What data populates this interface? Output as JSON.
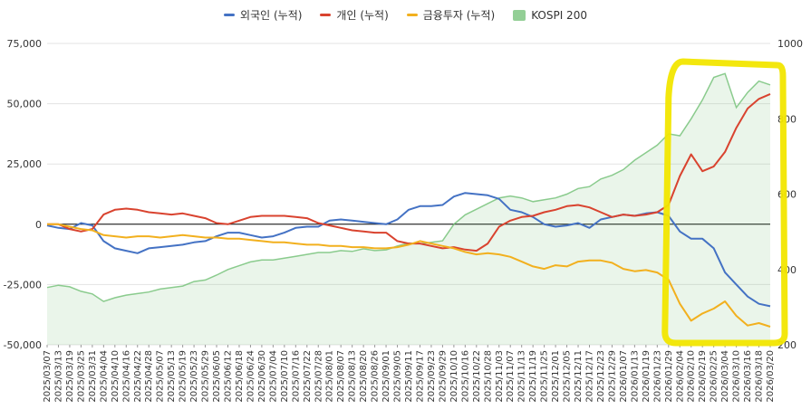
{
  "chart_data": {
    "type": "line",
    "legend_position": "top",
    "grid": true,
    "left_axis": {
      "min": -50000,
      "max": 75000,
      "ticks": [
        "-50,000",
        "-25,000",
        "0",
        "25,000",
        "50,000",
        "75,000"
      ]
    },
    "right_axis": {
      "min": 200,
      "max": 1000,
      "ticks": [
        "200",
        "400",
        "600",
        "800",
        "1000"
      ]
    },
    "x_labels": [
      "2025/03/07",
      "2025/03/13",
      "2025/03/19",
      "2025/03/25",
      "2025/03/31",
      "2025/04/04",
      "2025/04/10",
      "2025/04/16",
      "2025/04/22",
      "2025/04/28",
      "2025/05/07",
      "2025/05/13",
      "2025/05/19",
      "2025/05/23",
      "2025/05/29",
      "2025/06/05",
      "2025/06/12",
      "2025/06/18",
      "2025/06/24",
      "2025/06/30",
      "2025/07/04",
      "2025/07/10",
      "2025/07/16",
      "2025/07/22",
      "2025/07/28",
      "2025/08/01",
      "2025/08/07",
      "2025/08/13",
      "2025/08/20",
      "2025/08/26",
      "2025/09/01",
      "2025/09/05",
      "2025/09/11",
      "2025/09/17",
      "2025/09/23",
      "2025/09/29",
      "2025/10/10",
      "2025/10/16",
      "2025/10/22",
      "2025/10/28",
      "2025/11/03",
      "2025/11/07",
      "2025/11/13",
      "2025/11/19",
      "2025/11/25",
      "2025/12/01",
      "2025/12/05",
      "2025/12/11",
      "2025/12/17",
      "2025/12/23",
      "2025/12/29",
      "2026/01/07",
      "2026/01/13",
      "2026/01/19",
      "2026/01/23",
      "2026/01/29",
      "2026/02/04",
      "2026/02/10",
      "2026/02/19",
      "2026/02/25",
      "2026/03/04",
      "2026/03/10",
      "2026/03/16",
      "2026/03/18",
      "2026/03/20"
    ],
    "series": [
      {
        "name": "외국인 (누적)",
        "color": "#4472c4",
        "axis": "left",
        "values": [
          -500,
          -1500,
          -2000,
          500,
          -500,
          -7000,
          -10000,
          -11000,
          -12000,
          -10000,
          -9500,
          -9000,
          -8500,
          -7500,
          -7000,
          -5000,
          -3500,
          -3500,
          -4500,
          -5500,
          -5000,
          -3500,
          -1500,
          -1000,
          -1000,
          1500,
          2000,
          1500,
          1000,
          500,
          0,
          2000,
          6000,
          7500,
          7500,
          8000,
          11500,
          13000,
          12500,
          12000,
          10500,
          6000,
          5000,
          3000,
          0,
          -1000,
          -500,
          500,
          -1500,
          2000,
          3000,
          4000,
          3500,
          4500,
          5000,
          3500,
          -3000,
          -6000,
          -6000,
          -10000,
          -20000,
          -25000,
          -30000,
          -33000,
          -34000
        ]
      },
      {
        "name": "개인 (누적)",
        "color": "#d9432f",
        "axis": "left",
        "values": [
          0,
          0,
          -2000,
          -3000,
          -2000,
          4000,
          6000,
          6500,
          6000,
          5000,
          4500,
          4000,
          4500,
          3500,
          2500,
          500,
          0,
          1500,
          3000,
          3500,
          3500,
          3500,
          3000,
          2500,
          500,
          -500,
          -1500,
          -2500,
          -3000,
          -3500,
          -3500,
          -7000,
          -8000,
          -8000,
          -9000,
          -10000,
          -9500,
          -10500,
          -11000,
          -8000,
          -1000,
          1500,
          3000,
          3500,
          5000,
          6000,
          7500,
          8000,
          7000,
          5000,
          3000,
          4000,
          3500,
          4000,
          5000,
          8000,
          20000,
          29000,
          22000,
          24000,
          30000,
          40000,
          48000,
          52000,
          54000
        ]
      },
      {
        "name": "금융투자 (누적)",
        "color": "#f2b01e",
        "axis": "left",
        "values": [
          0,
          0,
          -1000,
          -2000,
          -2500,
          -4500,
          -5000,
          -5500,
          -5000,
          -5000,
          -5500,
          -5000,
          -4500,
          -5000,
          -5500,
          -5500,
          -6000,
          -6000,
          -6500,
          -7000,
          -7500,
          -7500,
          -8000,
          -8500,
          -8500,
          -9000,
          -9000,
          -9500,
          -9500,
          -10000,
          -10000,
          -9500,
          -8500,
          -7000,
          -8000,
          -9000,
          -10000,
          -11500,
          -12500,
          -12000,
          -12500,
          -13500,
          -15500,
          -17500,
          -18500,
          -17000,
          -17500,
          -15500,
          -15000,
          -15000,
          -16000,
          -18500,
          -19500,
          -19000,
          -20000,
          -23000,
          -33000,
          -40000,
          -37000,
          -35000,
          -32000,
          -38000,
          -42000,
          -41000,
          -42500
        ]
      },
      {
        "name": "KOSPI 200",
        "color": "#6fbf73",
        "axis": "right",
        "values": [
          352,
          358,
          354,
          342,
          335,
          315,
          325,
          332,
          336,
          340,
          348,
          352,
          356,
          368,
          372,
          385,
          400,
          410,
          420,
          425,
          425,
          430,
          435,
          440,
          445,
          445,
          450,
          448,
          455,
          450,
          452,
          462,
          470,
          468,
          472,
          476,
          520,
          545,
          560,
          575,
          590,
          595,
          590,
          580,
          585,
          590,
          600,
          615,
          620,
          640,
          650,
          665,
          690,
          710,
          730,
          760,
          755,
          800,
          850,
          910,
          920,
          830,
          870,
          900,
          890
        ]
      }
    ]
  }
}
